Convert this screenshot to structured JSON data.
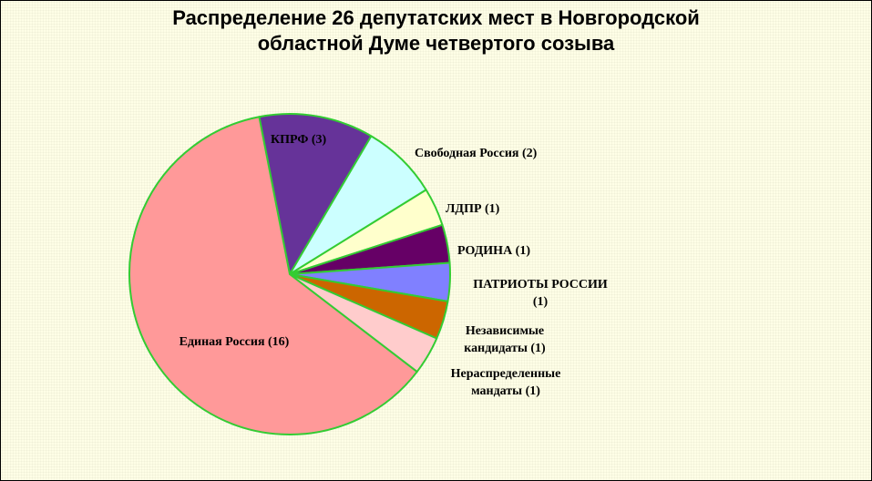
{
  "chart_data": {
    "type": "pie",
    "title_lines": [
      "Распределение 26 депутатских мест в Новгородской",
      "областной Думе четвертого созыва"
    ],
    "total": 26,
    "slices": [
      {
        "key": "kprf",
        "label_lines": [
          "КПРФ (3)"
        ],
        "value": 3,
        "color": "#663399"
      },
      {
        "key": "svobodnaya-rossiya",
        "label_lines": [
          "Свободная Россия (2)"
        ],
        "value": 2,
        "color": "#ccffff"
      },
      {
        "key": "ldpr",
        "label_lines": [
          "ЛДПР (1)"
        ],
        "value": 1,
        "color": "#ffffcc"
      },
      {
        "key": "rodina",
        "label_lines": [
          "РОДИНА (1)"
        ],
        "value": 1,
        "color": "#660066"
      },
      {
        "key": "patrioty-rossii",
        "label_lines": [
          "ПАТРИОТЫ РОССИИ",
          "(1)"
        ],
        "value": 1,
        "color": "#8080ff"
      },
      {
        "key": "nezavisimye",
        "label_lines": [
          "Независимые",
          "кандидаты (1)"
        ],
        "value": 1,
        "color": "#cc6600"
      },
      {
        "key": "neraspredelennye",
        "label_lines": [
          "Нераспределенные",
          "мандаты (1)"
        ],
        "value": 1,
        "color": "#ffcccc"
      },
      {
        "key": "edinaya-rossiya",
        "label_lines": [
          "Единая Россия (16)"
        ],
        "value": 16,
        "color": "#ff9999"
      }
    ],
    "edge_color": "#33cc33",
    "plot_background": "#fefee6"
  }
}
